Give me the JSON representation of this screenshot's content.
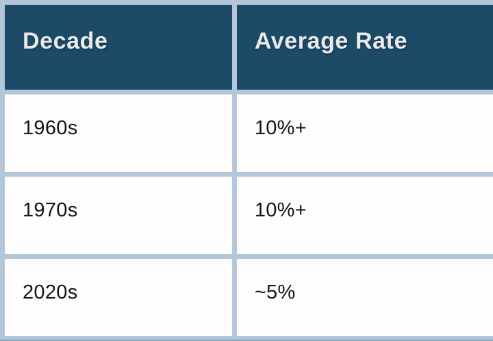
{
  "table": {
    "columns": [
      {
        "label": "Decade"
      },
      {
        "label": "Average Rate"
      }
    ],
    "rows": [
      {
        "decade": "1960s",
        "rate": "10%+"
      },
      {
        "decade": "1970s",
        "rate": "10%+"
      },
      {
        "decade": "2020s",
        "rate": "~5%"
      }
    ]
  },
  "chart_data": {
    "type": "table",
    "title": "",
    "columns": [
      "Decade",
      "Average Rate"
    ],
    "rows": [
      [
        "1960s",
        "10%+"
      ],
      [
        "1970s",
        "10%+"
      ],
      [
        "2020s",
        "~5%"
      ]
    ]
  },
  "colors": {
    "header_background": "#1d4a67",
    "border": "#b3c7d8",
    "cell_background": "#fefefe",
    "header_text": "#e9eaec",
    "body_text": "#141414"
  }
}
